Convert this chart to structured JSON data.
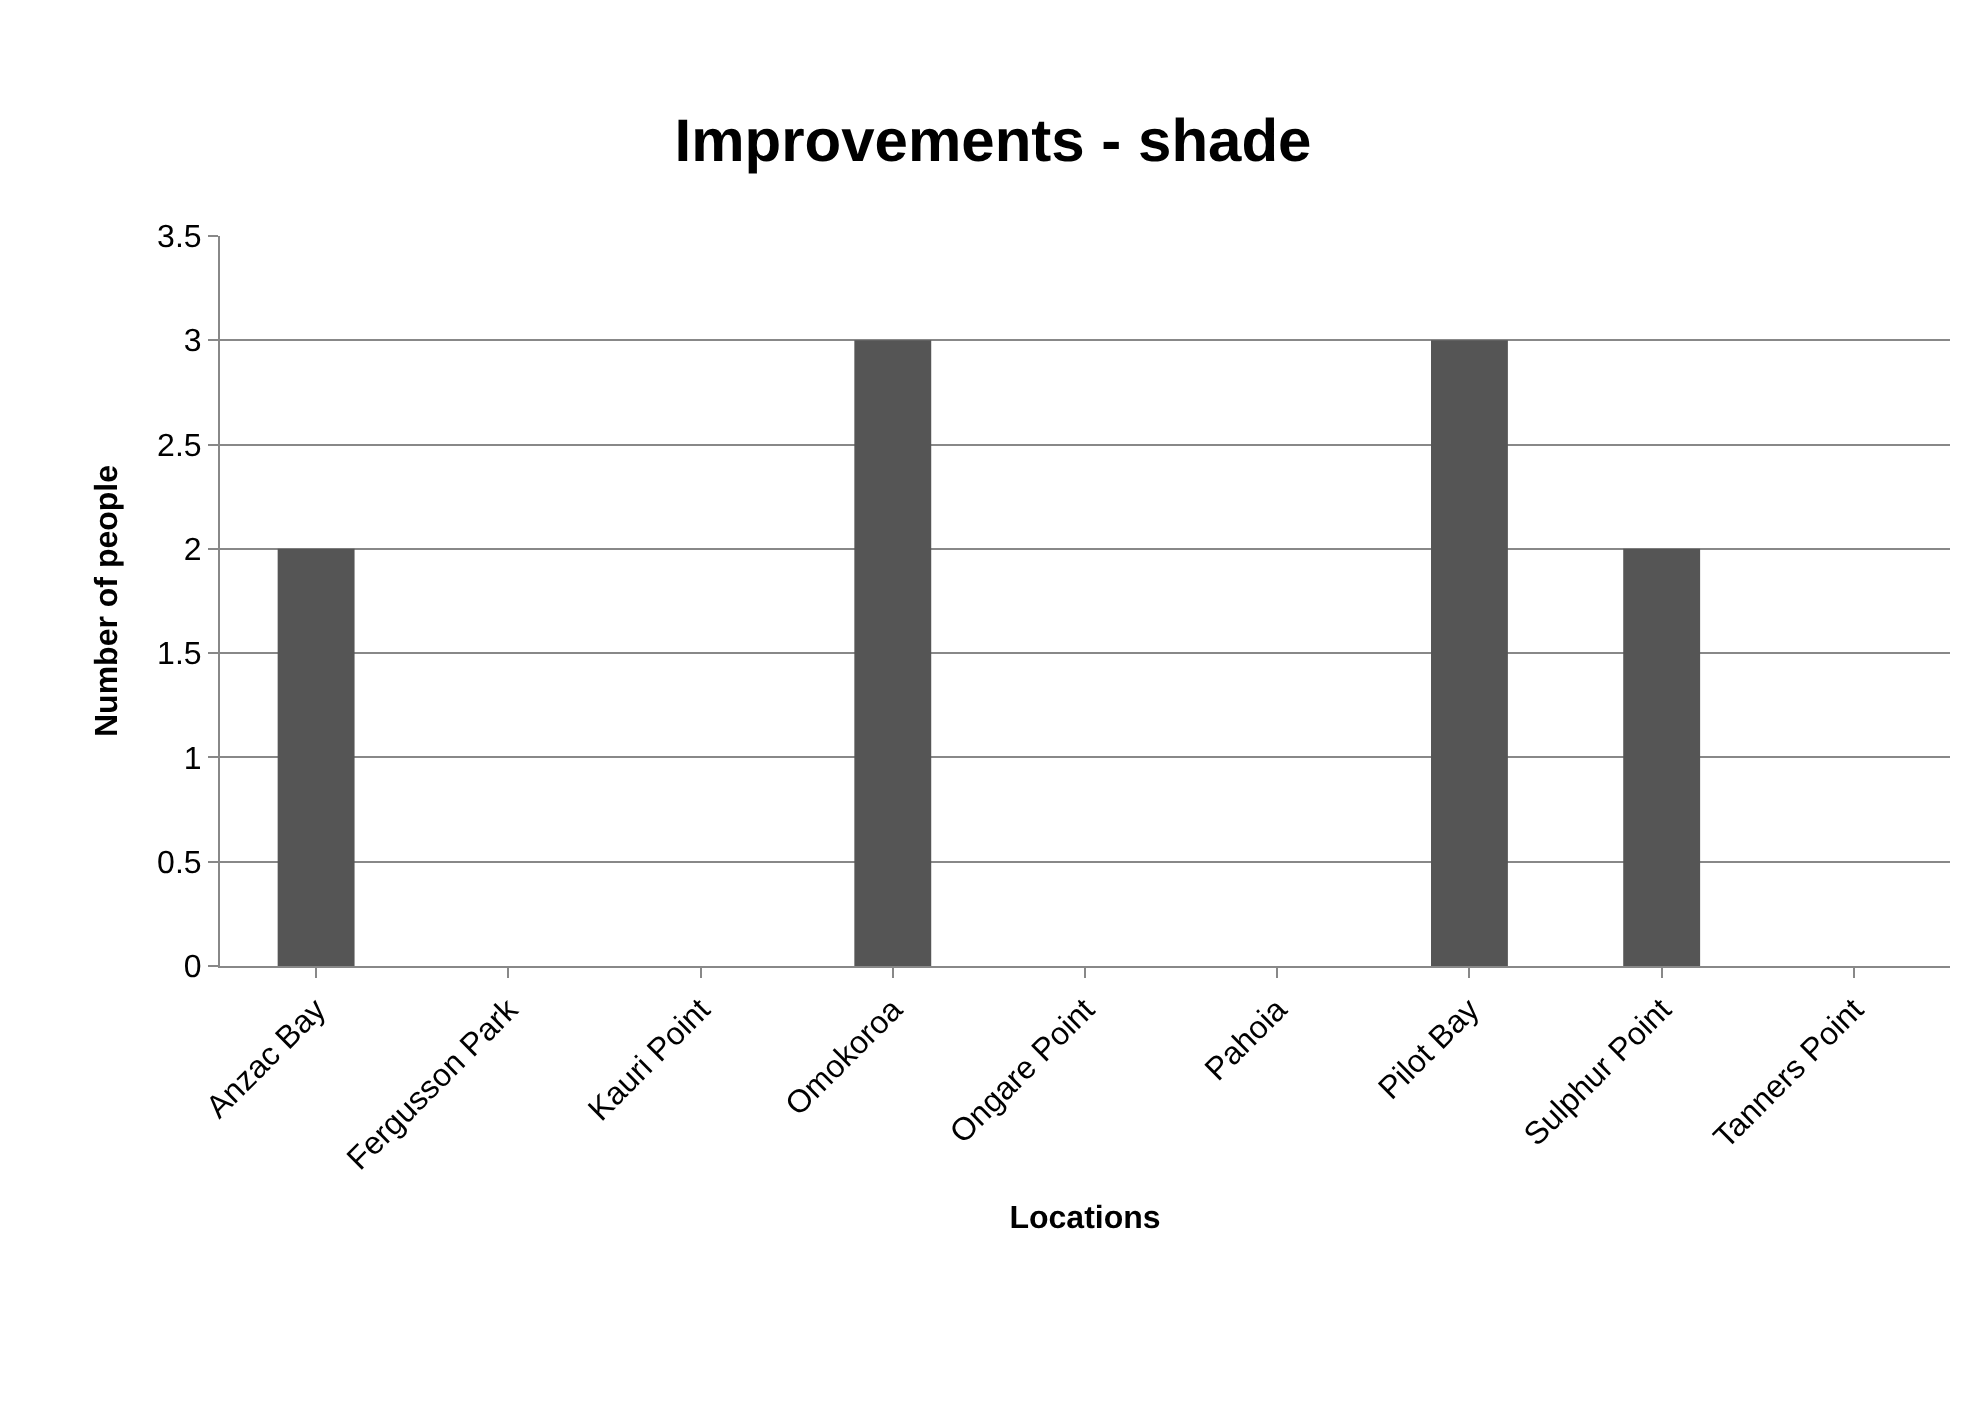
{
  "chart_data": {
    "type": "bar",
    "title": "Improvements - shade",
    "xlabel": "Locations",
    "ylabel": "Number of people",
    "categories": [
      "Anzac Bay",
      "Fergusson Park",
      "Kauri Point",
      "Omokoroa",
      "Ongare Point",
      "Pahoia",
      "Pilot Bay",
      "Sulphur Point",
      "Tanners Point"
    ],
    "values": [
      2,
      0,
      0,
      3,
      0,
      0,
      3,
      2,
      0
    ],
    "color": "#555555",
    "ylim": [
      0,
      3.5
    ],
    "yticks": [
      0,
      0.5,
      1,
      1.5,
      2,
      2.5,
      3,
      3.5
    ],
    "grid": "y",
    "legend": false
  }
}
